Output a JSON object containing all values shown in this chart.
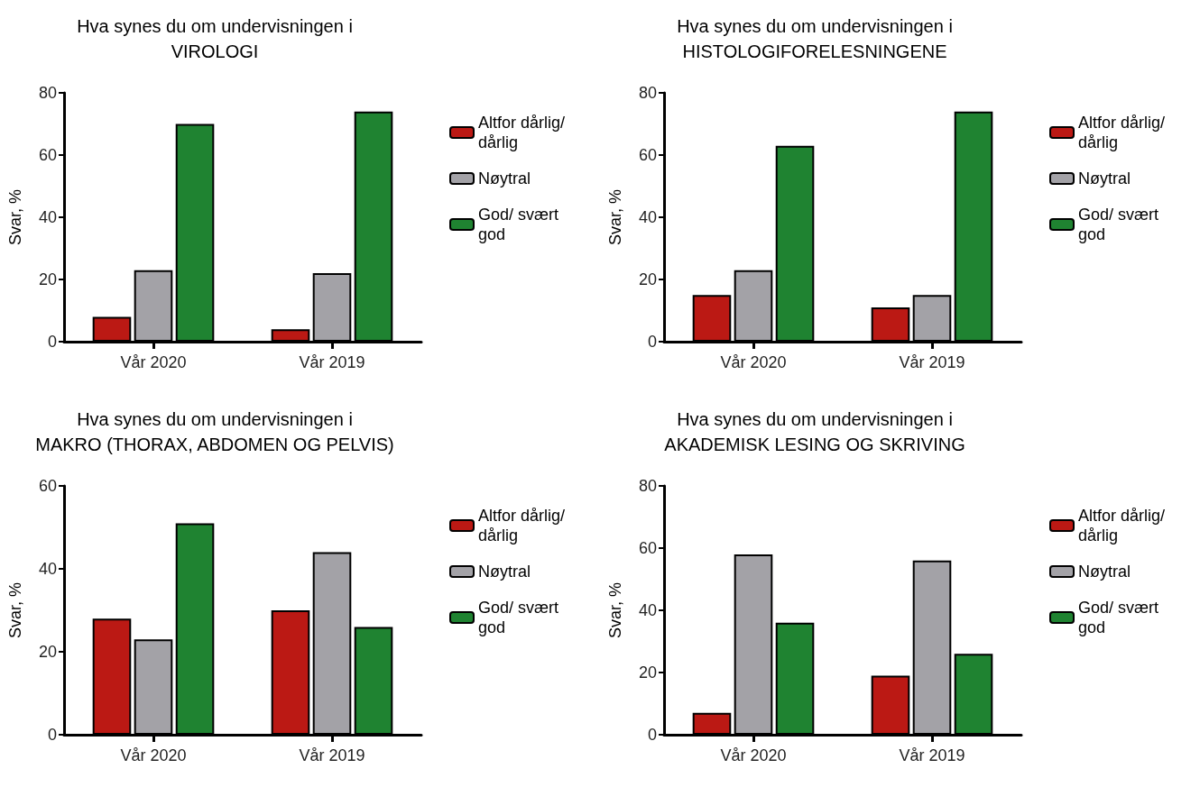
{
  "chart_data": [
    {
      "type": "bar",
      "title": "Hva synes du om undervisningen i\nVIROLOGI",
      "ylabel": "Svar, %",
      "categories": [
        "Vår 2020",
        "Vår 2019"
      ],
      "series": [
        {
          "name": "Altfor dårlig/ dårlig",
          "color": "#bb1914",
          "values": [
            8,
            4
          ]
        },
        {
          "name": "Nøytral",
          "color": "#a3a2a7",
          "values": [
            23,
            22
          ]
        },
        {
          "name": "God/ svært god",
          "color": "#1f8331",
          "values": [
            70,
            74
          ]
        }
      ],
      "ylim": [
        0,
        80
      ],
      "yticks": [
        0,
        20,
        40,
        60,
        80
      ],
      "grid": false,
      "legend": "right"
    },
    {
      "type": "bar",
      "title": "Hva synes du om undervisningen i\nHISTOLOGIFORELESNINGENE",
      "ylabel": "Svar, %",
      "categories": [
        "Vår 2020",
        "Vår 2019"
      ],
      "series": [
        {
          "name": "Altfor dårlig/ dårlig",
          "color": "#bb1914",
          "values": [
            15,
            11
          ]
        },
        {
          "name": "Nøytral",
          "color": "#a3a2a7",
          "values": [
            23,
            15
          ]
        },
        {
          "name": "God/ svært god",
          "color": "#1f8331",
          "values": [
            63,
            74
          ]
        }
      ],
      "ylim": [
        0,
        80
      ],
      "yticks": [
        0,
        20,
        40,
        60,
        80
      ],
      "grid": false,
      "legend": "right"
    },
    {
      "type": "bar",
      "title": "Hva synes du om undervisningen i\nMAKRO (THORAX, ABDOMEN OG PELVIS)",
      "ylabel": "Svar, %",
      "categories": [
        "Vår 2020",
        "Vår 2019"
      ],
      "series": [
        {
          "name": "Altfor dårlig/ dårlig",
          "color": "#bb1914",
          "values": [
            28,
            30
          ]
        },
        {
          "name": "Nøytral",
          "color": "#a3a2a7",
          "values": [
            23,
            44
          ]
        },
        {
          "name": "God/ svært god",
          "color": "#1f8331",
          "values": [
            51,
            26
          ]
        }
      ],
      "ylim": [
        0,
        60
      ],
      "yticks": [
        0,
        20,
        40,
        60
      ],
      "grid": false,
      "legend": "right"
    },
    {
      "type": "bar",
      "title": "Hva synes du om undervisningen i\nAKADEMISK LESING OG SKRIVING",
      "ylabel": "Svar, %",
      "categories": [
        "Vår 2020",
        "Vår 2019"
      ],
      "series": [
        {
          "name": "Altfor dårlig/ dårlig",
          "color": "#bb1914",
          "values": [
            7,
            19
          ]
        },
        {
          "name": "Nøytral",
          "color": "#a3a2a7",
          "values": [
            58,
            56
          ]
        },
        {
          "name": "God/ svært god",
          "color": "#1f8331",
          "values": [
            36,
            26
          ]
        }
      ],
      "ylim": [
        0,
        80
      ],
      "yticks": [
        0,
        20,
        40,
        60,
        80
      ],
      "grid": false,
      "legend": "right"
    }
  ]
}
